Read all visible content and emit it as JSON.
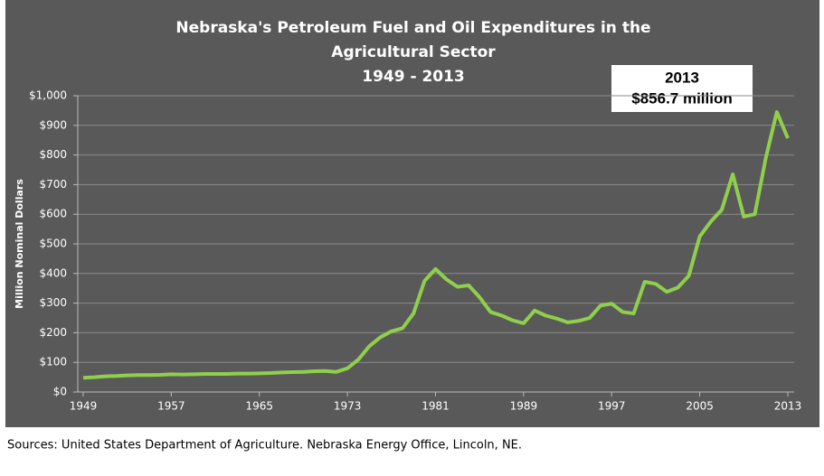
{
  "chart_data": {
    "type": "line",
    "title": [
      "Nebraska's Petroleum Fuel and Oil Expenditures in the",
      "Agricultural Sector"
    ],
    "subtitle": "1949 - 2013",
    "y_label": "Million Nominal Dollars",
    "annotation": [
      "2013",
      "$856.7 million"
    ],
    "source": "Sources:  United States Department of Agriculture.  Nebraska Energy Office, Lincoln, NE.",
    "x": [
      1949,
      1950,
      1951,
      1952,
      1953,
      1954,
      1955,
      1956,
      1957,
      1958,
      1959,
      1960,
      1961,
      1962,
      1963,
      1964,
      1965,
      1966,
      1967,
      1968,
      1969,
      1970,
      1971,
      1972,
      1973,
      1974,
      1975,
      1976,
      1977,
      1978,
      1979,
      1980,
      1981,
      1982,
      1983,
      1984,
      1985,
      1986,
      1987,
      1988,
      1989,
      1990,
      1991,
      1992,
      1993,
      1994,
      1995,
      1996,
      1997,
      1998,
      1999,
      2000,
      2001,
      2002,
      2003,
      2004,
      2005,
      2006,
      2007,
      2008,
      2009,
      2010,
      2011,
      2012,
      2013
    ],
    "series": [
      {
        "name": "Expenditures",
        "color": "#8fcf4c",
        "values": [
          48,
          50,
          53,
          54,
          56,
          57,
          57,
          58,
          60,
          59,
          60,
          61,
          61,
          61,
          62,
          62,
          63,
          64,
          66,
          67,
          68,
          70,
          71,
          68,
          80,
          110,
          155,
          185,
          205,
          215,
          265,
          375,
          415,
          380,
          355,
          360,
          320,
          270,
          258,
          242,
          232,
          275,
          258,
          248,
          235,
          240,
          250,
          292,
          298,
          270,
          265,
          372,
          365,
          338,
          352,
          392,
          525,
          575,
          615,
          735,
          592,
          600,
          790,
          945,
          856.7
        ]
      }
    ],
    "xlim": [
      1949,
      2013
    ],
    "xticks": [
      1949,
      1957,
      1965,
      1973,
      1981,
      1989,
      1997,
      2005,
      2013
    ],
    "ylim": [
      0,
      1000
    ],
    "yticks": [
      {
        "value": 0,
        "label": "$0"
      },
      {
        "value": 100,
        "label": "$100"
      },
      {
        "value": 200,
        "label": "$200"
      },
      {
        "value": 300,
        "label": "$300"
      },
      {
        "value": 400,
        "label": "$400"
      },
      {
        "value": 500,
        "label": "$500"
      },
      {
        "value": 600,
        "label": "$600"
      },
      {
        "value": 700,
        "label": "$700"
      },
      {
        "value": 800,
        "label": "$800"
      },
      {
        "value": 900,
        "label": "$900"
      },
      {
        "value": 1000,
        "label": "$1,000"
      }
    ],
    "grid": true
  }
}
